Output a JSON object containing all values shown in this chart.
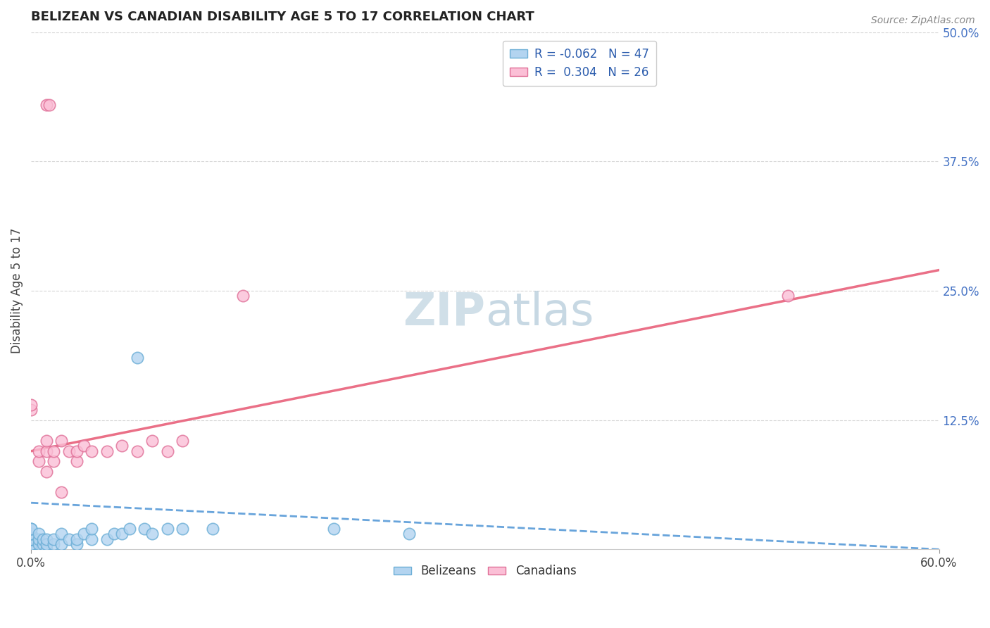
{
  "title": "BELIZEAN VS CANADIAN DISABILITY AGE 5 TO 17 CORRELATION CHART",
  "source": "Source: ZipAtlas.com",
  "ylabel": "Disability Age 5 to 17",
  "xlim": [
    0.0,
    0.6
  ],
  "ylim": [
    0.0,
    0.5
  ],
  "legend_r1": "R = -0.062",
  "legend_n1": "N = 47",
  "legend_r2": "R =  0.304",
  "legend_n2": "N = 26",
  "color_blue_fill": "#b3d4f0",
  "color_blue_edge": "#6baed6",
  "color_pink_fill": "#fbbfd6",
  "color_pink_edge": "#e07098",
  "color_blue_line": "#4d94d5",
  "color_pink_line": "#e8607a",
  "watermark_color": "#d0dfe8",
  "grid_color": "#cccccc",
  "right_tick_color": "#4472c4",
  "belizean_x": [
    0.0,
    0.0,
    0.0,
    0.0,
    0.0,
    0.0,
    0.0,
    0.0,
    0.0,
    0.0,
    0.0,
    0.0,
    0.0,
    0.0,
    0.0,
    0.0,
    0.0,
    0.005,
    0.005,
    0.005,
    0.008,
    0.008,
    0.01,
    0.01,
    0.01,
    0.015,
    0.015,
    0.02,
    0.02,
    0.025,
    0.03,
    0.03,
    0.035,
    0.04,
    0.04,
    0.05,
    0.055,
    0.06,
    0.065,
    0.07,
    0.075,
    0.08,
    0.09,
    0.1,
    0.12,
    0.2,
    0.25
  ],
  "belizean_y": [
    0.0,
    0.0,
    0.0,
    0.0,
    0.0,
    0.0,
    0.005,
    0.005,
    0.005,
    0.005,
    0.01,
    0.01,
    0.01,
    0.015,
    0.015,
    0.02,
    0.02,
    0.005,
    0.01,
    0.015,
    0.005,
    0.01,
    0.0,
    0.005,
    0.01,
    0.005,
    0.01,
    0.005,
    0.015,
    0.01,
    0.005,
    0.01,
    0.015,
    0.01,
    0.02,
    0.01,
    0.015,
    0.015,
    0.02,
    0.185,
    0.02,
    0.015,
    0.02,
    0.02,
    0.02,
    0.02,
    0.015
  ],
  "canadian_x": [
    0.01,
    0.012,
    0.0,
    0.0,
    0.005,
    0.005,
    0.01,
    0.01,
    0.01,
    0.015,
    0.015,
    0.02,
    0.02,
    0.025,
    0.03,
    0.03,
    0.035,
    0.04,
    0.05,
    0.06,
    0.07,
    0.08,
    0.09,
    0.1,
    0.14,
    0.5
  ],
  "canadian_y": [
    0.43,
    0.43,
    0.135,
    0.14,
    0.085,
    0.095,
    0.075,
    0.095,
    0.105,
    0.085,
    0.095,
    0.055,
    0.105,
    0.095,
    0.085,
    0.095,
    0.1,
    0.095,
    0.095,
    0.1,
    0.095,
    0.105,
    0.095,
    0.105,
    0.245,
    0.245
  ]
}
